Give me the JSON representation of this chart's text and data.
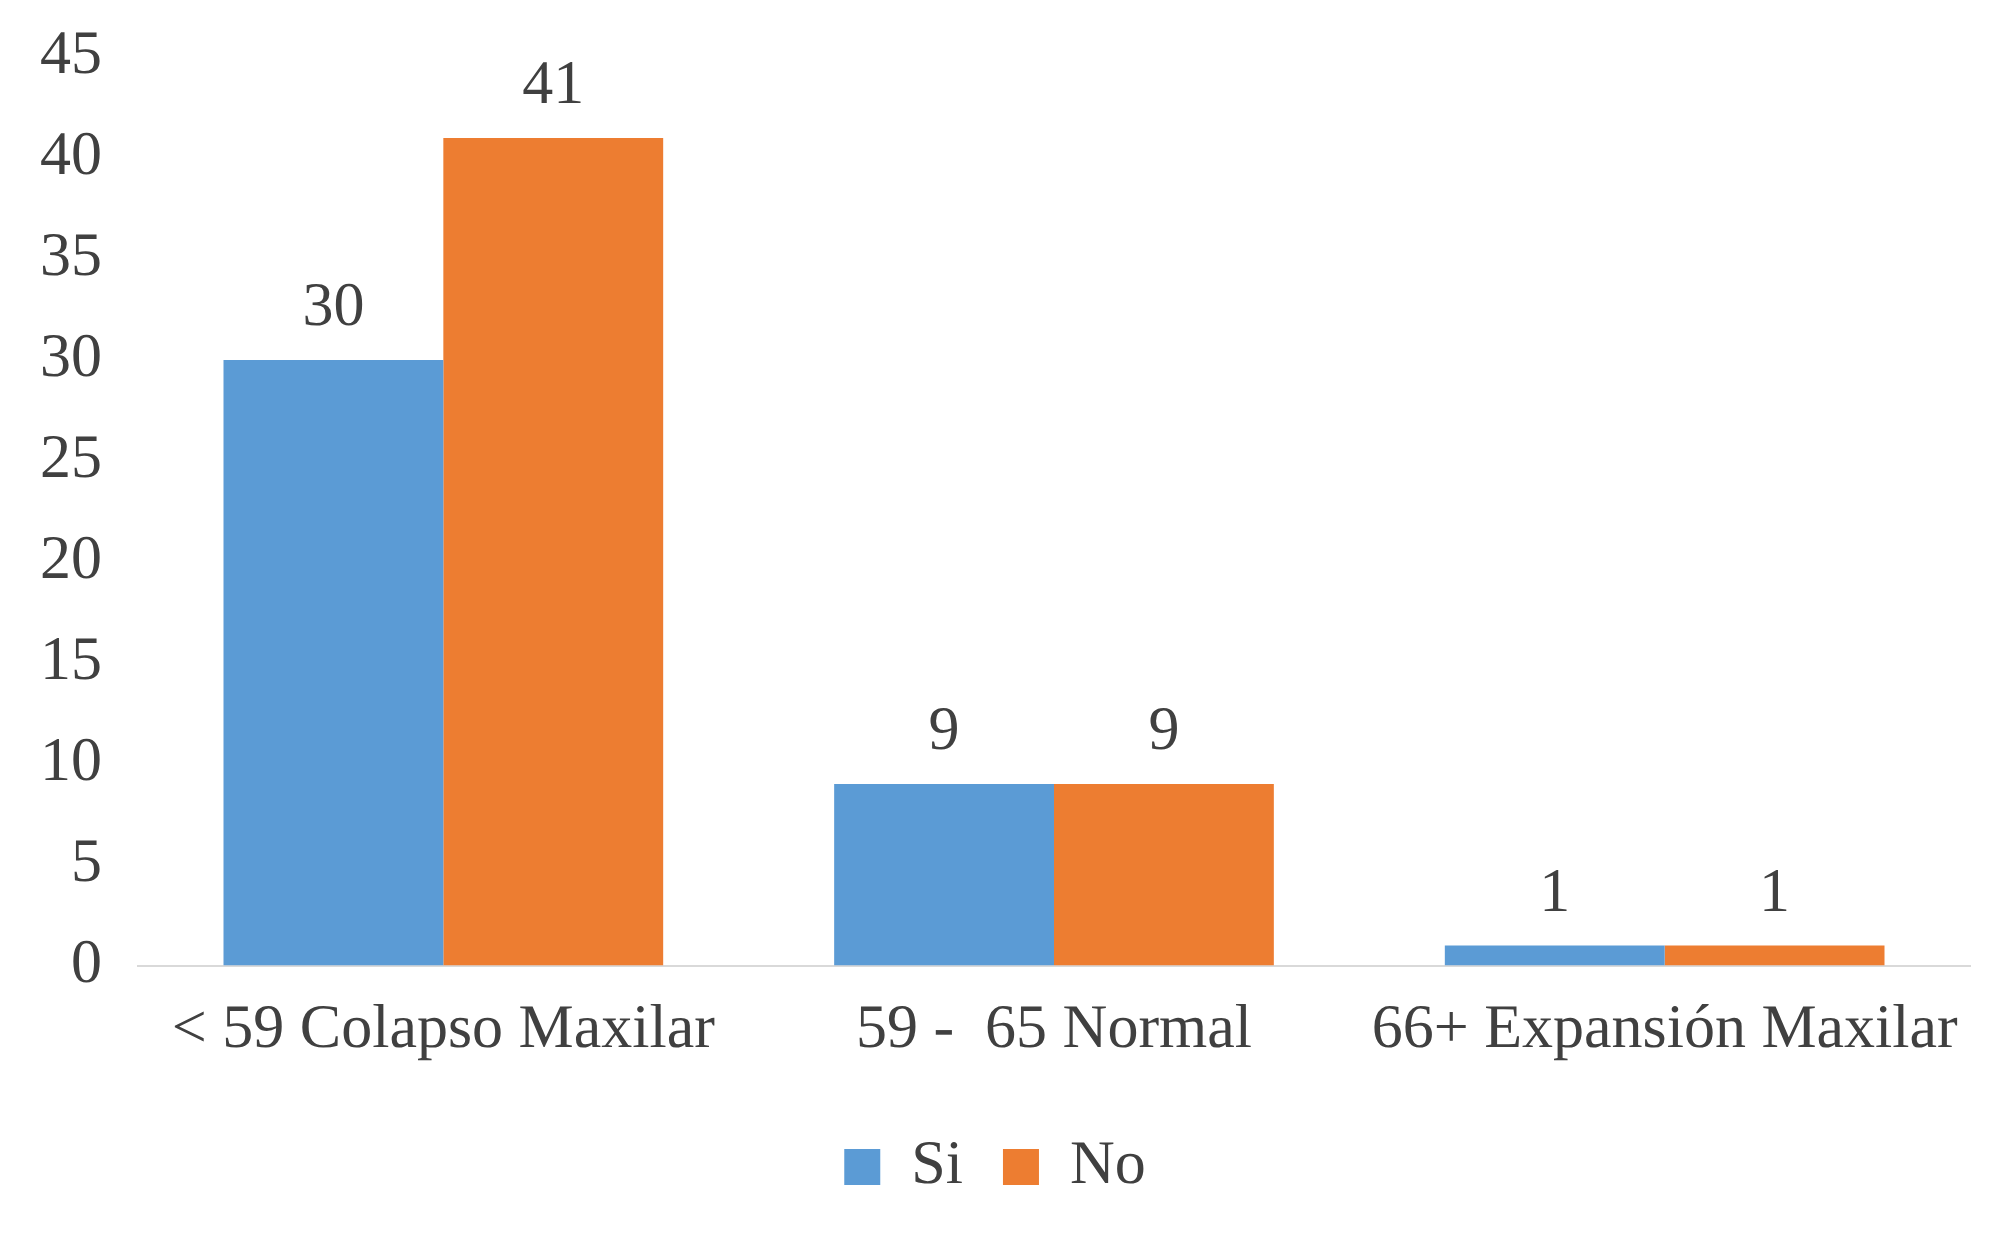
{
  "chart_data": {
    "type": "bar",
    "categories": [
      "< 59 Colapso Maxilar",
      "59 -  65 Normal",
      "66+ Expansión Maxilar"
    ],
    "series": [
      {
        "name": "Si",
        "color": "#5b9bd5",
        "values": [
          30,
          9,
          1
        ]
      },
      {
        "name": "No",
        "color": "#ed7d31",
        "values": [
          41,
          9,
          1
        ]
      }
    ],
    "ylim": [
      0,
      45
    ],
    "yticks": [
      0,
      5,
      10,
      15,
      20,
      25,
      30,
      35,
      40,
      45
    ],
    "grid": false,
    "legend": "bottom",
    "data_labels": true
  }
}
